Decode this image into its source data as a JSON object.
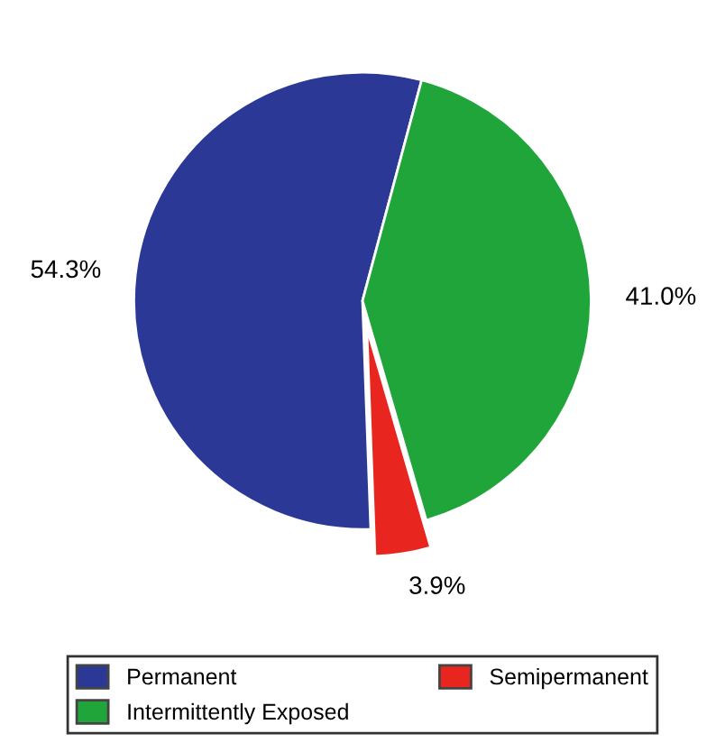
{
  "chart_data": {
    "type": "pie",
    "categories": [
      "Permanent",
      "Semipermanent",
      "Intermittently Exposed"
    ],
    "values": [
      54.3,
      3.9,
      41.0
    ],
    "colors": [
      "#2b3896",
      "#e8251f",
      "#1fa53a"
    ],
    "value_labels": [
      "54.3%",
      "3.9%",
      "41.0%"
    ],
    "legend": "bottom"
  }
}
